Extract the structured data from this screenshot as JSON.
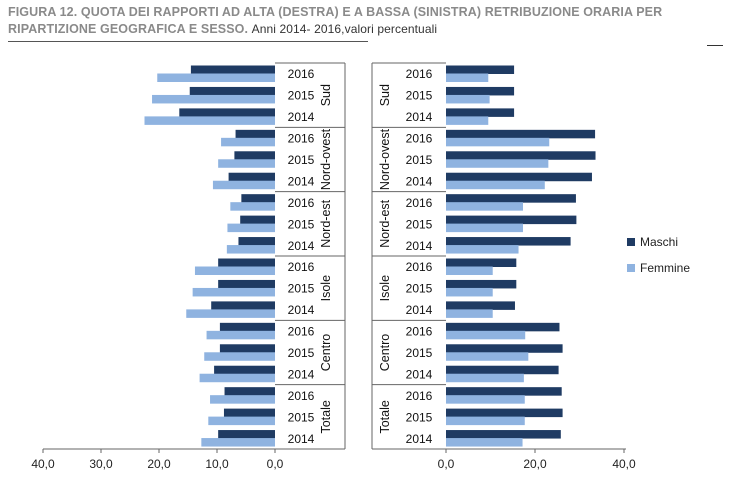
{
  "title": {
    "main": "FIGURA 12. QUOTA DEI RAPPORTI AD ALTA (DESTRA) E A BASSA (SINISTRA) RETRIBUZIONE ORARIA PER RIPARTIZIONE GEOGRAFICA E SESSO.",
    "sub": "Anni 2014- 2016,valori percentuali"
  },
  "chart_data": [
    {
      "type": "bar",
      "orientation": "horizontal",
      "side": "left (bassa retribuzione)",
      "regions": [
        "Sud",
        "Nord-ovest",
        "Nord-est",
        "Isole",
        "Centro",
        "Totale"
      ],
      "years": [
        "2016",
        "2015",
        "2014"
      ],
      "series": [
        {
          "name": "Maschi",
          "values": [
            [
              14.5,
              14.7,
              16.5
            ],
            [
              6.8,
              7.0,
              8.0
            ],
            [
              5.8,
              6.0,
              6.3
            ],
            [
              9.8,
              9.8,
              11.0
            ],
            [
              9.5,
              9.5,
              10.5
            ],
            [
              8.7,
              8.8,
              9.8
            ]
          ]
        },
        {
          "name": "Femmine",
          "values": [
            [
              20.3,
              21.2,
              22.5
            ],
            [
              9.3,
              9.8,
              10.7
            ],
            [
              7.7,
              8.2,
              8.3
            ],
            [
              13.8,
              14.2,
              15.3
            ],
            [
              11.8,
              12.2,
              13.0
            ],
            [
              11.2,
              11.5,
              12.7
            ]
          ]
        }
      ],
      "xlim": [
        40,
        0
      ],
      "xticks": [
        "40,0",
        "30,0",
        "20,0",
        "10,0",
        "0,0"
      ]
    },
    {
      "type": "bar",
      "orientation": "horizontal",
      "side": "right (alta retribuzione)",
      "regions": [
        "Sud",
        "Nord-ovest",
        "Nord-est",
        "Isole",
        "Centro",
        "Totale"
      ],
      "years": [
        "2016",
        "2015",
        "2014"
      ],
      "series": [
        {
          "name": "Maschi",
          "values": [
            [
              15.3,
              15.3,
              15.3
            ],
            [
              33.5,
              33.6,
              32.8
            ],
            [
              29.2,
              29.3,
              28.0
            ],
            [
              15.8,
              15.8,
              15.5
            ],
            [
              25.5,
              26.2,
              25.3
            ],
            [
              26.0,
              26.2,
              25.8
            ]
          ]
        },
        {
          "name": "Femmine",
          "values": [
            [
              9.5,
              9.8,
              9.5
            ],
            [
              23.2,
              23.0,
              22.2
            ],
            [
              17.3,
              17.3,
              16.3
            ],
            [
              10.5,
              10.5,
              10.5
            ],
            [
              17.8,
              18.5,
              17.5
            ],
            [
              17.7,
              17.7,
              17.2
            ]
          ]
        }
      ],
      "xlim": [
        0,
        40
      ],
      "xticks": [
        "0,0",
        "20,0",
        "40,0"
      ]
    }
  ],
  "legend": {
    "placement": "right",
    "items": [
      {
        "name": "Maschi",
        "color": "#1f3b63"
      },
      {
        "name": "Femmine",
        "color": "#8fb3e0"
      }
    ]
  },
  "colors": {
    "maschi": "#1f3b63",
    "femmine": "#8fb3e0",
    "axis": "#666666"
  }
}
